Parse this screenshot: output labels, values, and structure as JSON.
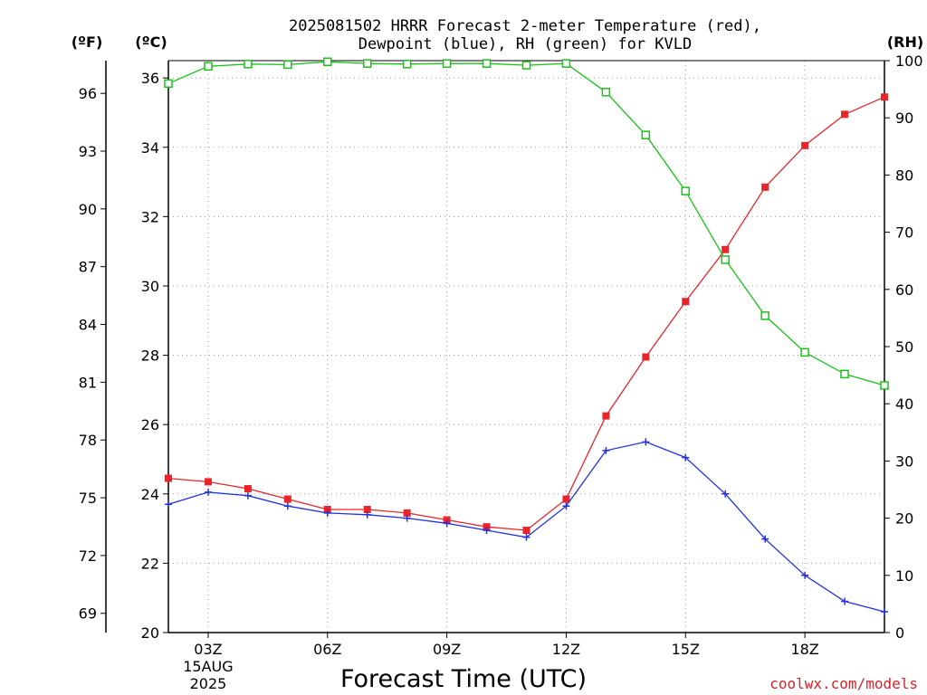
{
  "chart_data": {
    "type": "line",
    "title_line1": "2025081502 HRRR Forecast 2-meter Temperature (red),",
    "title_line2": "Dewpoint (blue), RH (green) for KVLD",
    "xlabel": "Forecast Time (UTC)",
    "credit": "coolwx.com/models",
    "unit_f": "(ºF)",
    "unit_c": "(ºC)",
    "unit_rh": "(RH)",
    "x": [
      2,
      3,
      4,
      5,
      6,
      7,
      8,
      9,
      10,
      11,
      12,
      13,
      14,
      15,
      16,
      17,
      18,
      19,
      20
    ],
    "xlim": [
      2,
      20
    ],
    "x_ticks": [
      {
        "x": 3,
        "label": "03Z",
        "sub1": "15AUG",
        "sub2": "2025"
      },
      {
        "x": 6,
        "label": "06Z"
      },
      {
        "x": 9,
        "label": "09Z"
      },
      {
        "x": 12,
        "label": "12Z"
      },
      {
        "x": 15,
        "label": "15Z"
      },
      {
        "x": 18,
        "label": "18Z"
      }
    ],
    "ylim_c": [
      20,
      36.5
    ],
    "ylim_rh": [
      0,
      100
    ],
    "y_ticks_c": [
      "20",
      "22",
      "24",
      "26",
      "28",
      "30",
      "32",
      "34",
      "36"
    ],
    "y_ticks_f": [
      "69",
      "72",
      "75",
      "78",
      "81",
      "84",
      "87",
      "90",
      "93",
      "96"
    ],
    "y_ticks_rh": [
      "0",
      "10",
      "20",
      "30",
      "40",
      "50",
      "60",
      "70",
      "80",
      "90",
      "100"
    ],
    "grid": true,
    "series": [
      {
        "name": "Temperature",
        "axis": "c",
        "color": "#e8252a",
        "marker": "filled-square",
        "values": [
          24.45,
          24.35,
          24.15,
          23.85,
          23.55,
          23.55,
          23.45,
          23.25,
          23.05,
          22.95,
          23.85,
          26.25,
          27.95,
          29.55,
          31.05,
          32.85,
          34.05,
          34.95,
          35.45
        ]
      },
      {
        "name": "Dewpoint",
        "axis": "c",
        "color": "#2030e8",
        "marker": "plus",
        "values": [
          23.7,
          24.05,
          23.95,
          23.65,
          23.45,
          23.4,
          23.3,
          23.15,
          22.95,
          22.75,
          23.65,
          25.25,
          25.5,
          25.05,
          24.0,
          22.7,
          21.65,
          20.9,
          20.6
        ]
      },
      {
        "name": "RH",
        "axis": "rh",
        "color": "#18c418",
        "marker": "open-square",
        "values": [
          96,
          99,
          99.4,
          99.3,
          99.8,
          99.5,
          99.4,
          99.5,
          99.5,
          99.2,
          99.5,
          94.5,
          87,
          77.2,
          65.2,
          55.4,
          49,
          45.2,
          43.2
        ]
      }
    ]
  }
}
